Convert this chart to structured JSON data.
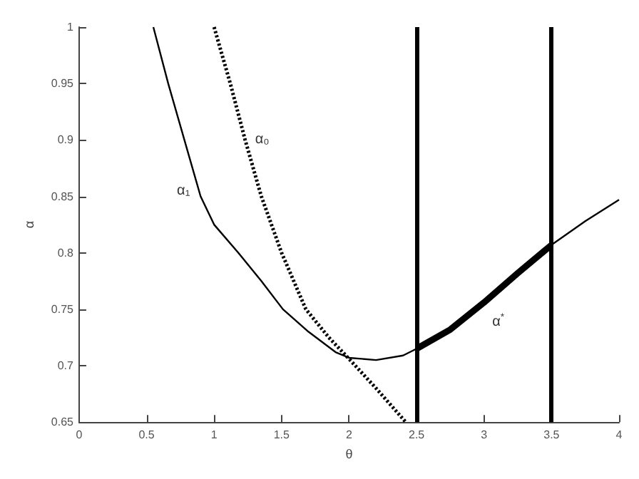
{
  "chart_data": {
    "type": "line",
    "xlabel": "θ",
    "ylabel": "α",
    "xlim": [
      0,
      4
    ],
    "ylim": [
      0.65,
      1
    ],
    "xticks": [
      0,
      0.5,
      1,
      1.5,
      2,
      2.5,
      3,
      3.5,
      4
    ],
    "yticks": [
      0.65,
      0.7,
      0.75,
      0.8,
      0.85,
      0.9,
      0.95,
      1
    ],
    "grid": false,
    "legend": false,
    "series": [
      {
        "name": "α₁",
        "color": "#000000",
        "line_style": "solid",
        "x": [
          0.55,
          0.66,
          0.78,
          0.9,
          1.0,
          1.18,
          1.35,
          1.51,
          1.7,
          1.9,
          2.0,
          2.2,
          2.4,
          2.5,
          2.75,
          3.0,
          3.25,
          3.5,
          3.75,
          4.0
        ],
        "values": [
          1.0,
          0.95,
          0.9,
          0.85,
          0.825,
          0.8,
          0.775,
          0.75,
          0.73,
          0.712,
          0.707,
          0.705,
          0.709,
          0.715,
          0.732,
          0.756,
          0.782,
          0.807,
          0.828,
          0.847
        ]
      },
      {
        "name": "α₀",
        "color": "#000000",
        "line_style": "dotted",
        "x": [
          1.0,
          1.12,
          1.23,
          1.35,
          1.5,
          1.68,
          1.85,
          2.0,
          2.2,
          2.42
        ],
        "values": [
          1.0,
          0.95,
          0.9,
          0.85,
          0.8,
          0.75,
          0.725,
          0.706,
          0.68,
          0.65
        ]
      },
      {
        "name": "α$^{*}$",
        "color": "#000000",
        "line_style": "solid",
        "x": [
          2.5,
          2.75,
          3.0,
          3.25,
          3.5
        ],
        "values": [
          0.715,
          0.732,
          0.756,
          0.782,
          0.807
        ]
      }
    ],
    "ref_lines": [
      {
        "axis": "x",
        "value": 2.5,
        "color": "#000000"
      },
      {
        "axis": "x",
        "value": 3.5,
        "color": "#000000"
      }
    ]
  }
}
